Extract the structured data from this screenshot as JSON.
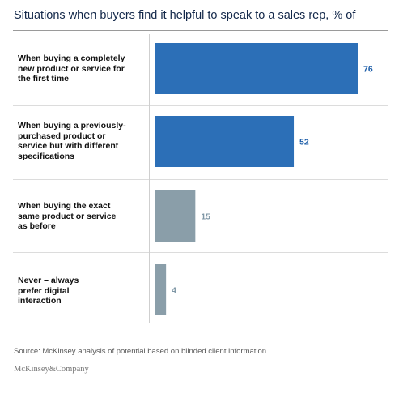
{
  "colors": {
    "primary_bar": "#2c6fb7",
    "secondary_bar": "#8a9ea9",
    "primary_label": "#2060aa",
    "secondary_label": "#7f97a6"
  },
  "chart_data": {
    "type": "bar",
    "orientation": "horizontal",
    "title": "Situations when buyers find it helpful to speak to a sales rep,",
    "unit": "% of",
    "categories": [
      "When buying a completely new product or service for the first time",
      "When buying a previously-purchased product or service but with different specifications",
      "When buying the exact same product or service as before",
      "Never – always prefer digital interaction"
    ],
    "category_lines": [
      [
        "When buying a completely",
        "new product or service for",
        "the first time"
      ],
      [
        "When buying a previously-",
        "purchased product or",
        "service but with different",
        "specifications"
      ],
      [
        "When buying the exact",
        "same product or service",
        "as before"
      ],
      [
        "Never – always",
        "prefer digital",
        "interaction"
      ]
    ],
    "values": [
      76,
      52,
      15,
      4
    ],
    "highlight": [
      true,
      true,
      false,
      false
    ],
    "xlim": [
      0,
      76
    ],
    "grid": false,
    "legend": "none"
  },
  "footer": {
    "source": "Source: McKinsey analysis of potential based on blinded client information",
    "brand": "McKinsey&Company"
  }
}
